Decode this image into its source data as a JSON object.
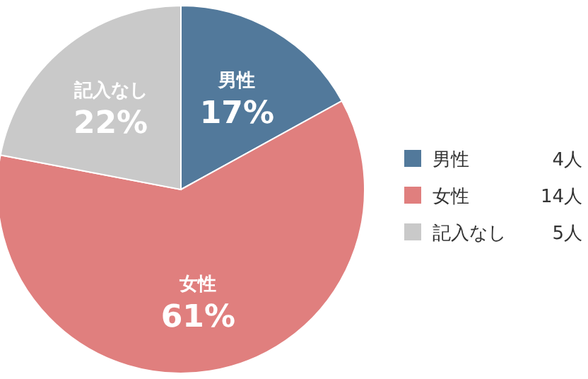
{
  "chart_data": {
    "type": "pie",
    "categories": [
      "男性",
      "女性",
      "記入なし"
    ],
    "values": [
      17,
      61,
      22
    ],
    "colors": [
      "#52799b",
      "#e07f7e",
      "#c9c9c9"
    ],
    "value_labels": [
      "17%",
      "61%",
      "22%"
    ],
    "annotations": [
      "4人",
      "14人",
      "5人"
    ],
    "legend": "right"
  }
}
